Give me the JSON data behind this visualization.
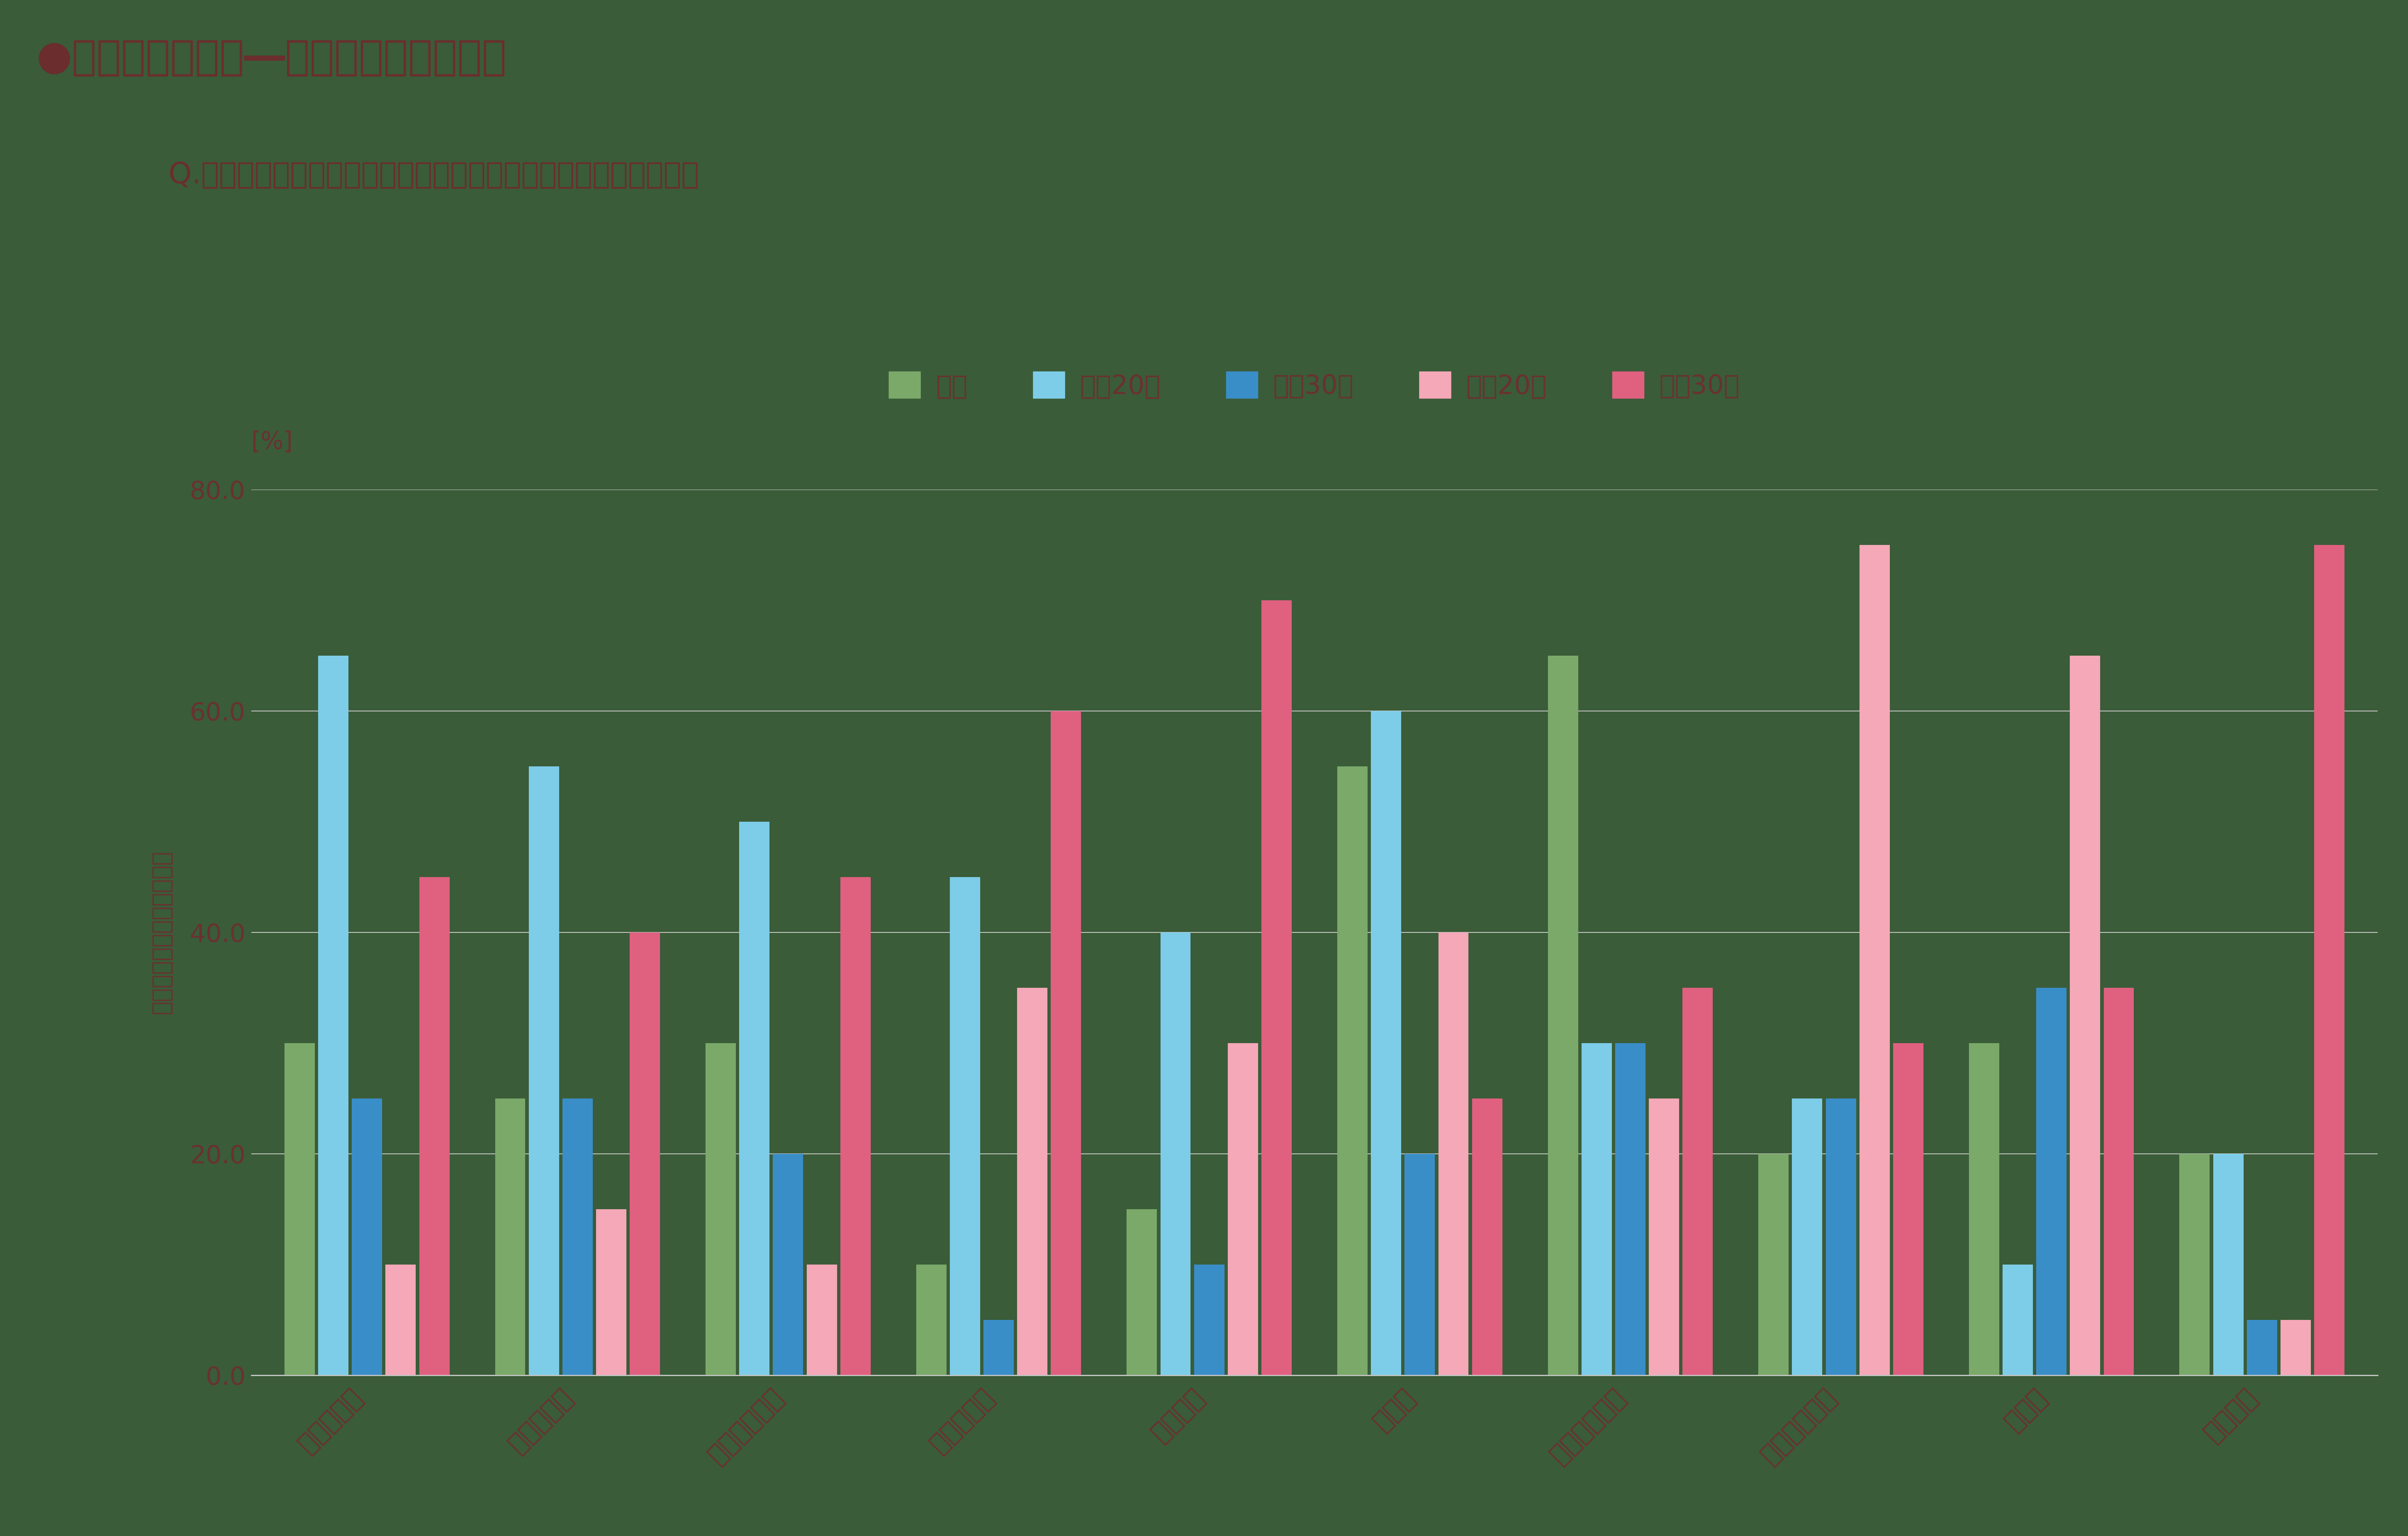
{
  "title": "●分析軸間の違い―複数回答形式の場合",
  "subtitle": "Q.あなたが商品を購入するときに、重視する点をお答えください",
  "ylabel_unit": "[%]",
  "ylabel": "回答者の割合（回答比率）",
  "categories": [
    "一流である",
    "信頼できる",
    "安心感がある",
    "勢いがある",
    "先進的な",
    "簡単な",
    "柔軟性がある",
    "センスがある",
    "面白い",
    "個性的な"
  ],
  "series_names": [
    "全体",
    "男性20代",
    "男性30代",
    "女性20代",
    "女性30代"
  ],
  "series_colors": [
    "#7aA96A",
    "#7DCDE8",
    "#3A8EC8",
    "#F4A8B8",
    "#E06080"
  ],
  "data": {
    "全体": [
      30,
      25,
      30,
      10,
      15,
      55,
      65,
      20,
      30,
      20
    ],
    "男性20代": [
      65,
      55,
      50,
      45,
      40,
      60,
      30,
      25,
      10,
      20
    ],
    "男性30代": [
      25,
      25,
      20,
      5,
      10,
      20,
      30,
      25,
      35,
      5
    ],
    "女性20代": [
      10,
      15,
      10,
      35,
      30,
      40,
      25,
      75,
      65,
      5
    ],
    "女性30代": [
      45,
      40,
      45,
      60,
      70,
      25,
      35,
      30,
      35,
      75
    ]
  },
  "ylim": [
    0,
    80
  ],
  "yticks": [
    0.0,
    20.0,
    40.0,
    60.0,
    80.0
  ],
  "background_color": "#3A5C38",
  "text_color": "#6B2D2D",
  "axis_text_color": "#6B3030",
  "grid_color": "#C8C8C8",
  "spine_color": "#C8C8C8",
  "title_fontsize": 72,
  "subtitle_fontsize": 52,
  "legend_fontsize": 46,
  "ylabel_unit_fontsize": 42,
  "ylabel_fontsize": 40,
  "tick_fontsize": 44,
  "xtick_fontsize": 46
}
